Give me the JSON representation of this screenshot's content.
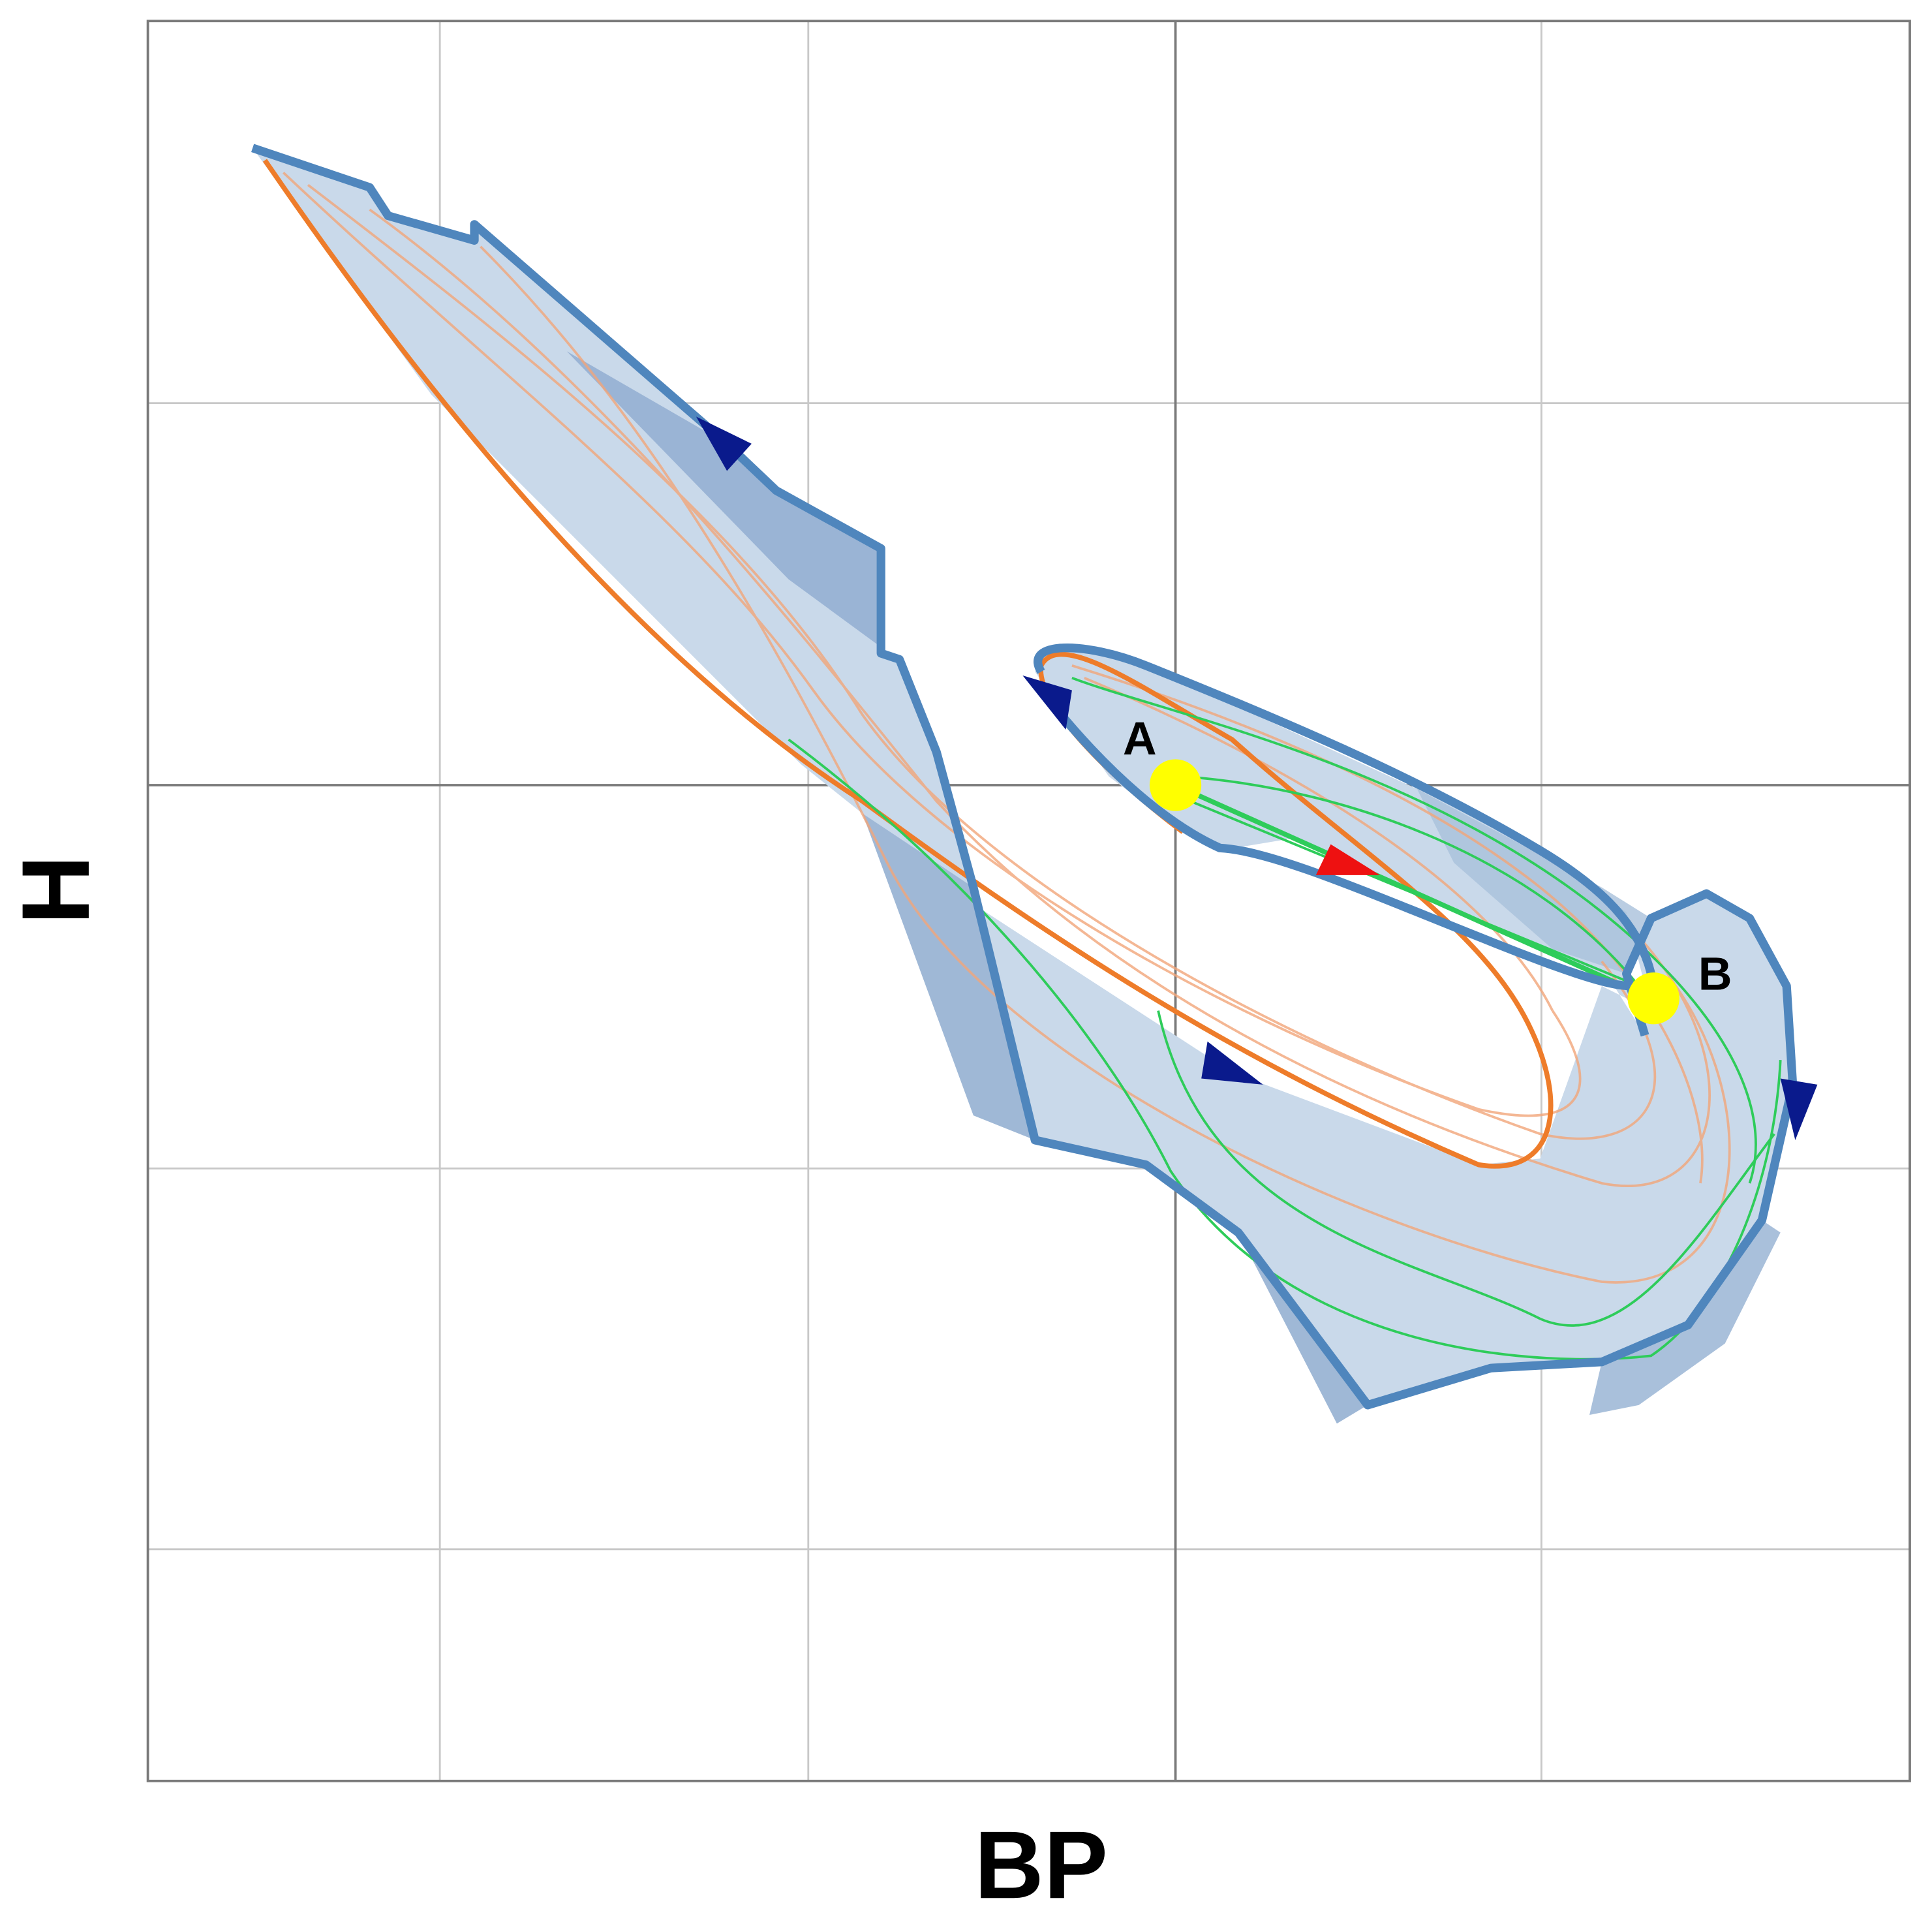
{
  "axes": {
    "x_label": "BP",
    "y_label": "H"
  },
  "points": [
    {
      "label": "A"
    },
    {
      "label": "B"
    }
  ]
}
